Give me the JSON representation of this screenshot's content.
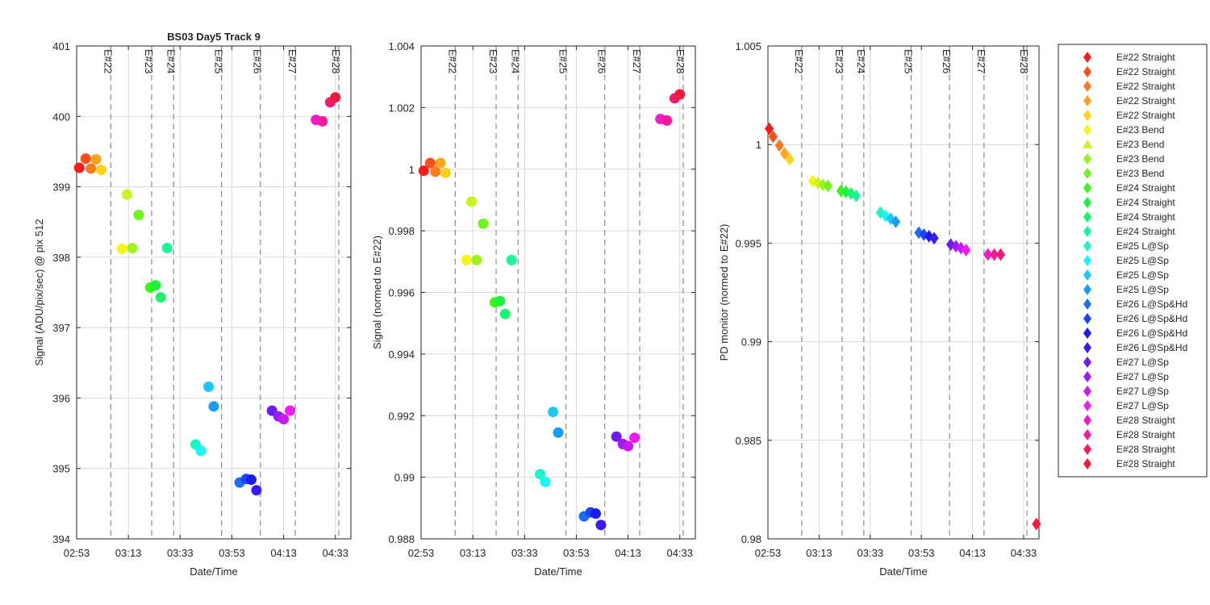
{
  "colors": {
    "grid": "#d9d9d9",
    "axis": "#262626",
    "event_line": "#8c8c8c"
  },
  "legend": {
    "entries": [
      {
        "label": "E#22 Straight",
        "color": "#ff1a1a",
        "marker": "diamond"
      },
      {
        "label": "E#22 Straight",
        "color": "#ff4d1a",
        "marker": "diamond"
      },
      {
        "label": "E#22 Straight",
        "color": "#ff7a1a",
        "marker": "diamond"
      },
      {
        "label": "E#22 Straight",
        "color": "#ffa31a",
        "marker": "diamond"
      },
      {
        "label": "E#22 Straight",
        "color": "#ffd21a",
        "marker": "diamond"
      },
      {
        "label": "E#23 Bend",
        "color": "#f5f51a",
        "marker": "diamond"
      },
      {
        "label": "E#23 Bend",
        "color": "#c8f51a",
        "marker": "triangle"
      },
      {
        "label": "E#23 Bend",
        "color": "#9cf51a",
        "marker": "diamond"
      },
      {
        "label": "E#23 Bend",
        "color": "#6ef51a",
        "marker": "diamond"
      },
      {
        "label": "E#24 Straight",
        "color": "#3cf51a",
        "marker": "diamond"
      },
      {
        "label": "E#24 Straight",
        "color": "#1af53c",
        "marker": "diamond"
      },
      {
        "label": "E#24 Straight",
        "color": "#1af56e",
        "marker": "diamond"
      },
      {
        "label": "E#24 Straight",
        "color": "#1af59c",
        "marker": "diamond"
      },
      {
        "label": "E#25 L@Sp",
        "color": "#1af5c8",
        "marker": "diamond"
      },
      {
        "label": "E#25 L@Sp",
        "color": "#1af5f5",
        "marker": "diamond"
      },
      {
        "label": "E#25 L@Sp",
        "color": "#1ac8f5",
        "marker": "diamond"
      },
      {
        "label": "E#25 L@Sp",
        "color": "#1a9cf5",
        "marker": "diamond"
      },
      {
        "label": "E#26 L@Sp&Hd",
        "color": "#1a6ef5",
        "marker": "diamond"
      },
      {
        "label": "E#26 L@Sp&Hd",
        "color": "#1a46f5",
        "marker": "diamond"
      },
      {
        "label": "E#26 L@Sp&Hd",
        "color": "#1a1af5",
        "marker": "diamond"
      },
      {
        "label": "E#26 L@Sp&Hd",
        "color": "#3c1af5",
        "marker": "diamond"
      },
      {
        "label": "E#27 L@Sp",
        "color": "#6e1af5",
        "marker": "diamond"
      },
      {
        "label": "E#27 L@Sp",
        "color": "#9c1af5",
        "marker": "diamond"
      },
      {
        "label": "E#27 L@Sp",
        "color": "#c81af5",
        "marker": "diamond"
      },
      {
        "label": "E#27 L@Sp",
        "color": "#f51af5",
        "marker": "diamond"
      },
      {
        "label": "E#28 Straight",
        "color": "#f51ac8",
        "marker": "diamond"
      },
      {
        "label": "E#28 Straight",
        "color": "#f51a9c",
        "marker": "diamond"
      },
      {
        "label": "E#28 Straight",
        "color": "#f51a6e",
        "marker": "diamond"
      },
      {
        "label": "E#28 Straight",
        "color": "#f51a3c",
        "marker": "diamond"
      }
    ]
  },
  "chart_data": [
    {
      "type": "scatter",
      "title": "BS03 Day5 Track 9",
      "xlabel": "Date/Time",
      "ylabel": "Signal (ADU/pix/sec) @ pix 512",
      "x_ticks": [
        "02:53",
        "03:13",
        "03:33",
        "03:53",
        "04:13",
        "04:33"
      ],
      "x_tick_minutes": [
        0,
        20,
        40,
        60,
        80,
        100
      ],
      "xlim_minutes": [
        0,
        106
      ],
      "ylim": [
        394,
        401
      ],
      "y_ticks": [
        394,
        395,
        396,
        397,
        398,
        399,
        400,
        401
      ],
      "y_tick_labels": [
        "394",
        "395",
        "396",
        "397",
        "398",
        "399",
        "400",
        "401"
      ],
      "grid": true,
      "marker": "circle",
      "event_lines": [
        {
          "label": "E#22",
          "x_minute": 13.2
        },
        {
          "label": "E#23",
          "x_minute": 29.0
        },
        {
          "label": "E#24",
          "x_minute": 37.5
        },
        {
          "label": "E#25",
          "x_minute": 56.0
        },
        {
          "label": "E#26",
          "x_minute": 71.0
        },
        {
          "label": "E#27",
          "x_minute": 84.5
        },
        {
          "label": "E#28",
          "x_minute": 101.3
        }
      ],
      "points": [
        {
          "x_minute": 1.0,
          "y": 399.27
        },
        {
          "x_minute": 3.5,
          "y": 399.4
        },
        {
          "x_minute": 5.5,
          "y": 399.26
        },
        {
          "x_minute": 7.5,
          "y": 399.39
        },
        {
          "x_minute": 9.5,
          "y": 399.24
        },
        {
          "x_minute": 17.5,
          "y": 398.12
        },
        {
          "x_minute": 19.5,
          "y": 398.89
        },
        {
          "x_minute": 21.5,
          "y": 398.13
        },
        {
          "x_minute": 24.0,
          "y": 398.6
        },
        {
          "x_minute": 28.5,
          "y": 397.57
        },
        {
          "x_minute": 30.5,
          "y": 397.6
        },
        {
          "x_minute": 32.5,
          "y": 397.43
        },
        {
          "x_minute": 35.0,
          "y": 398.13
        },
        {
          "x_minute": 46.0,
          "y": 395.34
        },
        {
          "x_minute": 48.0,
          "y": 395.25
        },
        {
          "x_minute": 51.0,
          "y": 396.16
        },
        {
          "x_minute": 53.0,
          "y": 395.88
        },
        {
          "x_minute": 63.0,
          "y": 394.8
        },
        {
          "x_minute": 65.5,
          "y": 394.85
        },
        {
          "x_minute": 67.5,
          "y": 394.84
        },
        {
          "x_minute": 69.5,
          "y": 394.69
        },
        {
          "x_minute": 75.5,
          "y": 395.82
        },
        {
          "x_minute": 78.0,
          "y": 395.74
        },
        {
          "x_minute": 80.0,
          "y": 395.7
        },
        {
          "x_minute": 82.5,
          "y": 395.82
        },
        {
          "x_minute": 92.5,
          "y": 399.95
        },
        {
          "x_minute": 95.0,
          "y": 399.93
        },
        {
          "x_minute": 98.0,
          "y": 400.2
        },
        {
          "x_minute": 100.0,
          "y": 400.27
        }
      ]
    },
    {
      "type": "scatter",
      "xlabel": "Date/Time",
      "ylabel": "Signal (normed to E#22)",
      "x_ticks": [
        "02:53",
        "03:13",
        "03:33",
        "03:53",
        "04:13",
        "04:33"
      ],
      "x_tick_minutes": [
        0,
        20,
        40,
        60,
        80,
        100
      ],
      "xlim_minutes": [
        0,
        106
      ],
      "ylim": [
        0.988,
        1.004
      ],
      "y_ticks": [
        0.988,
        0.99,
        0.992,
        0.994,
        0.996,
        0.998,
        1,
        1.002,
        1.004
      ],
      "y_tick_labels": [
        "0.988",
        "0.99",
        "0.992",
        "0.994",
        "0.996",
        "0.998",
        "1",
        "1.002",
        "1.004"
      ],
      "grid": true,
      "marker": "circle",
      "event_lines": [
        {
          "label": "E#22",
          "x_minute": 13.2
        },
        {
          "label": "E#23",
          "x_minute": 29.0
        },
        {
          "label": "E#24",
          "x_minute": 37.5
        },
        {
          "label": "E#25",
          "x_minute": 56.0
        },
        {
          "label": "E#26",
          "x_minute": 71.0
        },
        {
          "label": "E#27",
          "x_minute": 84.5
        },
        {
          "label": "E#28",
          "x_minute": 101.3
        }
      ],
      "points": [
        {
          "x_minute": 1.0,
          "y": 0.99995
        },
        {
          "x_minute": 3.5,
          "y": 1.0002
        },
        {
          "x_minute": 5.5,
          "y": 0.99992
        },
        {
          "x_minute": 7.5,
          "y": 1.0002
        },
        {
          "x_minute": 9.5,
          "y": 0.99988
        },
        {
          "x_minute": 17.5,
          "y": 0.99705
        },
        {
          "x_minute": 19.5,
          "y": 0.99895
        },
        {
          "x_minute": 21.5,
          "y": 0.99705
        },
        {
          "x_minute": 24.0,
          "y": 0.99823
        },
        {
          "x_minute": 28.5,
          "y": 0.99568
        },
        {
          "x_minute": 30.5,
          "y": 0.99572
        },
        {
          "x_minute": 32.5,
          "y": 0.9953
        },
        {
          "x_minute": 35.0,
          "y": 0.99705
        },
        {
          "x_minute": 46.0,
          "y": 0.9901
        },
        {
          "x_minute": 48.0,
          "y": 0.98985
        },
        {
          "x_minute": 51.0,
          "y": 0.99212
        },
        {
          "x_minute": 53.0,
          "y": 0.99145
        },
        {
          "x_minute": 63.0,
          "y": 0.98873
        },
        {
          "x_minute": 65.5,
          "y": 0.98886
        },
        {
          "x_minute": 67.5,
          "y": 0.98882
        },
        {
          "x_minute": 69.5,
          "y": 0.98845
        },
        {
          "x_minute": 75.5,
          "y": 0.99132
        },
        {
          "x_minute": 78.0,
          "y": 0.99108
        },
        {
          "x_minute": 80.0,
          "y": 0.99101
        },
        {
          "x_minute": 82.5,
          "y": 0.99128
        },
        {
          "x_minute": 92.5,
          "y": 1.00163
        },
        {
          "x_minute": 95.0,
          "y": 1.00158
        },
        {
          "x_minute": 98.0,
          "y": 1.0023
        },
        {
          "x_minute": 100.0,
          "y": 1.00243
        }
      ]
    },
    {
      "type": "scatter",
      "xlabel": "Date/Time",
      "ylabel": "PD monitor (normed to E#22)",
      "x_ticks": [
        "02:53",
        "03:13",
        "03:33",
        "03:53",
        "04:13",
        "04:33"
      ],
      "x_tick_minutes": [
        0,
        20,
        40,
        60,
        80,
        100
      ],
      "xlim_minutes": [
        0,
        106
      ],
      "ylim": [
        0.98,
        1.005
      ],
      "y_ticks": [
        0.98,
        0.985,
        0.99,
        0.995,
        1,
        1.005
      ],
      "y_tick_labels": [
        "0.98",
        "0.985",
        "0.99",
        "0.995",
        "1",
        "1.005"
      ],
      "grid": true,
      "marker": "diamond",
      "event_lines": [
        {
          "label": "E#22",
          "x_minute": 13.2
        },
        {
          "label": "E#23",
          "x_minute": 29.0
        },
        {
          "label": "E#24",
          "x_minute": 37.5
        },
        {
          "label": "E#25",
          "x_minute": 56.0
        },
        {
          "label": "E#26",
          "x_minute": 71.0
        },
        {
          "label": "E#27",
          "x_minute": 84.5
        },
        {
          "label": "E#28",
          "x_minute": 101.3
        }
      ],
      "points": [
        {
          "x_minute": 0.5,
          "y": 1.0008
        },
        {
          "x_minute": 2.0,
          "y": 1.0004
        },
        {
          "x_minute": 4.5,
          "y": 0.99995
        },
        {
          "x_minute": 6.5,
          "y": 0.99955
        },
        {
          "x_minute": 8.5,
          "y": 0.99925
        },
        {
          "x_minute": 17.5,
          "y": 0.99815
        },
        {
          "x_minute": 19.5,
          "y": 0.99805
        },
        {
          "x_minute": 21.5,
          "y": 0.99795
        },
        {
          "x_minute": 23.5,
          "y": 0.9979
        },
        {
          "x_minute": 28.5,
          "y": 0.99765
        },
        {
          "x_minute": 30.5,
          "y": 0.9976
        },
        {
          "x_minute": 32.5,
          "y": 0.99752
        },
        {
          "x_minute": 34.5,
          "y": 0.9974
        },
        {
          "x_minute": 44.0,
          "y": 0.99655
        },
        {
          "x_minute": 46.0,
          "y": 0.99638
        },
        {
          "x_minute": 48.0,
          "y": 0.99624
        },
        {
          "x_minute": 50.0,
          "y": 0.99608
        },
        {
          "x_minute": 59.0,
          "y": 0.99553
        },
        {
          "x_minute": 61.0,
          "y": 0.99543
        },
        {
          "x_minute": 63.0,
          "y": 0.99535
        },
        {
          "x_minute": 65.0,
          "y": 0.99525
        },
        {
          "x_minute": 71.5,
          "y": 0.99493
        },
        {
          "x_minute": 73.5,
          "y": 0.99484
        },
        {
          "x_minute": 75.5,
          "y": 0.99475
        },
        {
          "x_minute": 77.5,
          "y": 0.99465
        },
        {
          "x_minute": 86.0,
          "y": 0.99442
        },
        {
          "x_minute": 88.5,
          "y": 0.99442
        },
        {
          "x_minute": 91.0,
          "y": 0.99442
        },
        {
          "x_minute": 105.0,
          "y": 0.98075
        }
      ]
    }
  ]
}
